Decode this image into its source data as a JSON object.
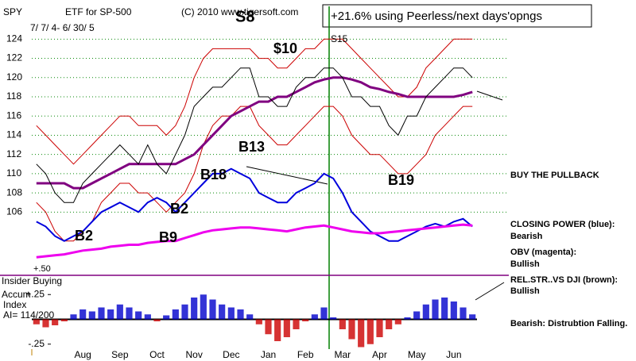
{
  "chart_data": {
    "type": "line",
    "ticker": "SPY",
    "title": "ETF for SP-500",
    "subtitle": "7/ 7/ 4- 6/ 30/ 5",
    "source": "(C) 2010 www.tigersoft.com",
    "headline": "+21.6% using Peerless/next days'opngs",
    "categories": [
      null,
      null,
      null,
      null,
      null,
      "Aug",
      null,
      null,
      null,
      "Sep",
      null,
      null,
      null,
      "Oct",
      null,
      null,
      null,
      "Nov",
      null,
      null,
      null,
      "Dec",
      null,
      null,
      null,
      "Jan",
      null,
      null,
      null,
      "Feb",
      null,
      null,
      null,
      "Mar",
      null,
      null,
      null,
      "Apr",
      null,
      null,
      null,
      "May",
      null,
      null,
      null,
      "Jun",
      null,
      null
    ],
    "ylim": [
      100,
      127
    ],
    "yticks": [
      106,
      108,
      110,
      112,
      114,
      116,
      118,
      120,
      122,
      124
    ],
    "grid": true,
    "y2lim": [
      -0.3,
      0.3
    ],
    "y2ticks": [
      {
        "value": 0.25,
        "label": "+.25"
      },
      {
        "value": -0.25,
        "label": "-.25"
      }
    ],
    "series": [
      {
        "color": "#cc0000",
        "values": [
          115,
          114,
          113,
          112,
          111,
          112,
          113,
          114,
          115,
          116,
          116,
          115,
          115,
          115,
          114,
          115,
          117,
          120,
          122,
          123,
          123,
          123,
          123,
          123,
          122,
          122,
          121,
          121,
          122,
          123,
          123,
          124,
          124,
          124,
          123,
          122,
          121,
          120,
          119,
          118,
          118,
          119,
          121,
          122,
          123,
          124,
          124,
          124
        ]
      },
      {
        "color": "#cc0000",
        "values": [
          107,
          106,
          104,
          103,
          103,
          104,
          105,
          107,
          108,
          109,
          109,
          108,
          108,
          107,
          106,
          107,
          108,
          110,
          113,
          115,
          116,
          116,
          117,
          117,
          115,
          114,
          113,
          113,
          114,
          115,
          116,
          117,
          117,
          116,
          114,
          113,
          112,
          112,
          111,
          110,
          110,
          111,
          112,
          114,
          115,
          116,
          117,
          117
        ]
      },
      {
        "color": "#800080",
        "width": 3,
        "values": [
          109,
          109,
          109,
          109,
          108.5,
          108.5,
          109,
          109.5,
          110,
          110.5,
          111,
          111,
          111,
          111,
          111,
          111,
          111.5,
          112,
          113,
          114,
          115,
          116,
          116.5,
          117,
          117.5,
          117.5,
          118,
          118,
          118.5,
          119,
          119.5,
          119.8,
          120,
          120,
          119.8,
          119.5,
          119,
          118.8,
          118.5,
          118.3,
          118,
          118,
          118,
          118,
          118,
          118,
          118.2,
          118.5
        ]
      },
      {
        "color": "#000000",
        "values": [
          111,
          110,
          108,
          107,
          107,
          109,
          110,
          111,
          112,
          113,
          112,
          111,
          113,
          111,
          110,
          112,
          114,
          117,
          118,
          119,
          119,
          120,
          121,
          121,
          118,
          118,
          117,
          117,
          119,
          120,
          120,
          121,
          121,
          120,
          118,
          118,
          117,
          117,
          115,
          114,
          116,
          116,
          118,
          119,
          120,
          121,
          121,
          120
        ]
      },
      {
        "color": "#0000dd",
        "width": 2,
        "values": [
          105,
          104.5,
          103.5,
          103,
          103.5,
          104,
          105,
          106,
          106.5,
          107,
          106.5,
          106,
          107,
          107.5,
          107,
          106,
          107,
          108,
          109,
          110,
          110,
          110.5,
          110,
          109.5,
          108,
          107.5,
          107,
          107,
          108,
          108.5,
          109,
          110,
          109.5,
          108,
          106,
          105,
          104,
          103.5,
          103,
          103,
          103.5,
          104,
          104.5,
          104.8,
          104.5,
          105,
          105.3,
          104.5
        ]
      },
      {
        "color": "#ee00ee",
        "width": 3,
        "values": [
          101.3,
          101.4,
          101.5,
          101.6,
          101.8,
          102,
          102.1,
          102.2,
          102.4,
          102.5,
          102.6,
          102.6,
          102.8,
          102.9,
          103,
          103,
          103.3,
          103.6,
          103.9,
          104.1,
          104.2,
          104.3,
          104.4,
          104.4,
          104.3,
          104.2,
          104.1,
          104,
          104.2,
          104.4,
          104.5,
          104.6,
          104.4,
          104.2,
          104,
          103.9,
          103.8,
          103.8,
          103.9,
          104,
          104.1,
          104.2,
          104.3,
          104.4,
          104.5,
          104.6,
          104.7,
          104.6
        ]
      },
      {
        "axis": "y2",
        "kind": "bar",
        "color": "#0000cc",
        "negative_color": "#cc0000",
        "values": [
          -0.05,
          -0.08,
          -0.06,
          -0.02,
          0.05,
          0.1,
          0.08,
          0.12,
          0.1,
          0.15,
          0.12,
          0.08,
          0.05,
          -0.02,
          0.04,
          0.1,
          0.15,
          0.22,
          0.25,
          0.2,
          0.15,
          0.12,
          0.1,
          0.05,
          -0.05,
          -0.15,
          -0.22,
          -0.18,
          -0.1,
          -0.02,
          0.05,
          0.12,
          0.02,
          -0.1,
          -0.2,
          -0.28,
          -0.25,
          -0.18,
          -0.1,
          -0.05,
          0.02,
          0.08,
          0.15,
          0.2,
          0.22,
          0.18,
          0.12,
          0.05
        ]
      }
    ],
    "annotations": [
      "S8",
      "$10",
      "S15",
      "B13",
      "B18",
      "B19",
      "B2",
      "B9",
      "B2",
      "BUY THE PULLBACK",
      "CLOSING POWER (blue):",
      "Bearish",
      "OBV (magenta):",
      "Bullish",
      "REL.STR..VS DJI (brown):",
      "Bullish",
      "Bearish: Distrubtion Falling.",
      "+.50",
      "Insider Buying",
      "Accum",
      "Index",
      "AI= 114/200"
    ]
  }
}
